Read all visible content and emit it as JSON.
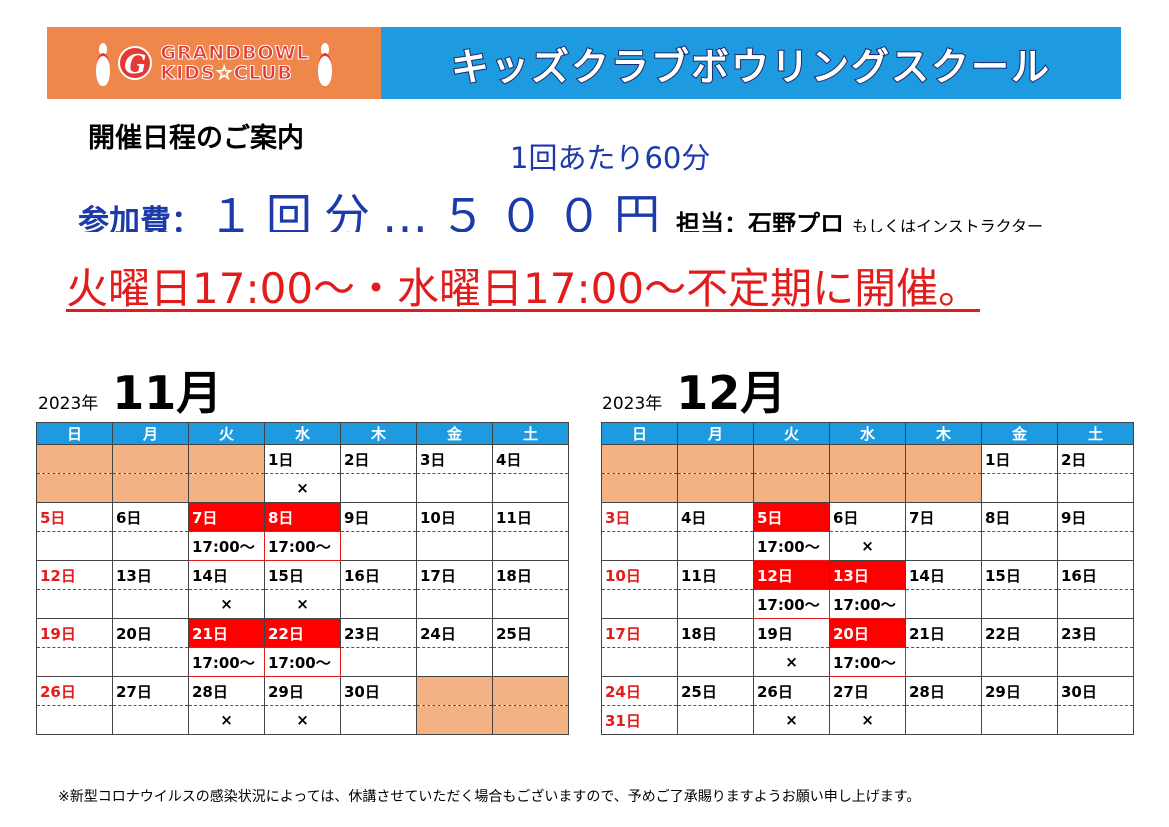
{
  "banner": {
    "logo_line1": "GRANDBOWL",
    "logo_line2": "KIDS☆CLUB",
    "title": "キッズクラブボウリングスクール"
  },
  "info": {
    "heading": "開催日程のご案内",
    "per_session": "1回あたり60分",
    "fee_label": "参加費：",
    "fee_amount": "１回分…５００円",
    "instructor": "担当：石野プロ",
    "instructor_alt": "もしくはインストラクター",
    "schedule": "火曜日17:00～・水曜日17:00～不定期に開催。"
  },
  "weekdays": [
    "日",
    "月",
    "火",
    "水",
    "木",
    "金",
    "土"
  ],
  "calendars": [
    {
      "year": "2023年",
      "month": "11月",
      "weeks": [
        {
          "days": [
            "",
            "",
            "",
            "1日",
            "2日",
            "3日",
            "4日"
          ],
          "notes": [
            "",
            "",
            "",
            "×",
            "",
            "",
            ""
          ]
        },
        {
          "days": [
            "5日",
            "6日",
            "7日",
            "8日",
            "9日",
            "10日",
            "11日"
          ],
          "notes": [
            "",
            "",
            "17:00～",
            "17:00～",
            "",
            "",
            ""
          ]
        },
        {
          "days": [
            "12日",
            "13日",
            "14日",
            "15日",
            "16日",
            "17日",
            "18日"
          ],
          "notes": [
            "",
            "",
            "×",
            "×",
            "",
            "",
            ""
          ]
        },
        {
          "days": [
            "19日",
            "20日",
            "21日",
            "22日",
            "23日",
            "24日",
            "25日"
          ],
          "notes": [
            "",
            "",
            "17:00～",
            "17:00～",
            "",
            "",
            ""
          ]
        },
        {
          "days": [
            "26日",
            "27日",
            "28日",
            "29日",
            "30日",
            "",
            ""
          ],
          "notes": [
            "",
            "",
            "×",
            "×",
            "",
            "",
            ""
          ]
        }
      ]
    },
    {
      "year": "2023年",
      "month": "12月",
      "weeks": [
        {
          "days": [
            "",
            "",
            "",
            "",
            "",
            "1日",
            "2日"
          ],
          "notes": [
            "",
            "",
            "",
            "",
            "",
            "",
            ""
          ]
        },
        {
          "days": [
            "3日",
            "4日",
            "5日",
            "6日",
            "7日",
            "8日",
            "9日"
          ],
          "notes": [
            "",
            "",
            "17:00～",
            "×",
            "",
            "",
            ""
          ]
        },
        {
          "days": [
            "10日",
            "11日",
            "12日",
            "13日",
            "14日",
            "15日",
            "16日"
          ],
          "notes": [
            "",
            "",
            "17:00～",
            "17:00～",
            "",
            "",
            ""
          ]
        },
        {
          "days": [
            "17日",
            "18日",
            "19日",
            "20日",
            "21日",
            "22日",
            "23日"
          ],
          "notes": [
            "",
            "",
            "×",
            "17:00～",
            "",
            "",
            ""
          ]
        },
        {
          "days": [
            "24日",
            "25日",
            "26日",
            "27日",
            "28日",
            "29日",
            "30日"
          ],
          "notes": [
            "31日",
            "",
            "×",
            "×",
            "",
            "",
            ""
          ]
        }
      ]
    }
  ],
  "footnote": "※新型コロナウイルスの感染状況によっては、休講させていただく場合もございますので、予めご了承賜りますようお願い申し上げます。"
}
